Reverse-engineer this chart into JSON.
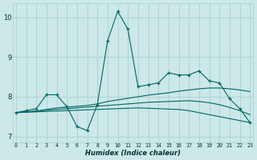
{
  "xlabel": "Humidex (Indice chaleur)",
  "bg_color": "#cce8e8",
  "grid_color": "#aacfcf",
  "line_color": "#006666",
  "x_ticks": [
    0,
    1,
    2,
    3,
    4,
    5,
    6,
    7,
    8,
    9,
    10,
    11,
    12,
    13,
    14,
    15,
    16,
    17,
    18,
    19,
    20,
    21,
    22,
    23
  ],
  "ylim": [
    6.85,
    10.35
  ],
  "xlim": [
    -0.3,
    23.3
  ],
  "series1_x": [
    0,
    1,
    2,
    3,
    4,
    5,
    6,
    7,
    8,
    9,
    10,
    11,
    12,
    13,
    14,
    15,
    16,
    17,
    18,
    19,
    20,
    21,
    22,
    23
  ],
  "series1_y": [
    7.6,
    7.65,
    7.7,
    8.05,
    8.05,
    7.75,
    7.25,
    7.15,
    7.8,
    9.4,
    10.15,
    9.7,
    8.25,
    8.3,
    8.35,
    8.6,
    8.55,
    8.55,
    8.65,
    8.4,
    8.35,
    7.95,
    7.7,
    7.35
  ],
  "series2_x": [
    0,
    1,
    2,
    3,
    4,
    5,
    6,
    7,
    8,
    9,
    10,
    11,
    12,
    13,
    14,
    15,
    16,
    17,
    18,
    19,
    20,
    21,
    22,
    23
  ],
  "series2_y": [
    7.6,
    7.62,
    7.64,
    7.66,
    7.68,
    7.7,
    7.72,
    7.74,
    7.76,
    7.78,
    7.8,
    7.82,
    7.84,
    7.86,
    7.87,
    7.88,
    7.89,
    7.9,
    7.88,
    7.85,
    7.8,
    7.73,
    7.65,
    7.55
  ],
  "series3_x": [
    0,
    1,
    2,
    3,
    4,
    5,
    6,
    7,
    8,
    9,
    10,
    11,
    12,
    13,
    14,
    15,
    16,
    17,
    18,
    19,
    20,
    21,
    22,
    23
  ],
  "series3_y": [
    7.6,
    7.62,
    7.64,
    7.68,
    7.72,
    7.74,
    7.76,
    7.78,
    7.82,
    7.88,
    7.92,
    7.96,
    8.0,
    8.04,
    8.07,
    8.1,
    8.14,
    8.17,
    8.2,
    8.22,
    8.22,
    8.2,
    8.17,
    8.13
  ],
  "series4_x": [
    0,
    1,
    2,
    3,
    4,
    5,
    6,
    7,
    8,
    9,
    10,
    11,
    12,
    13,
    14,
    15,
    16,
    17,
    18,
    19,
    20,
    21,
    22,
    23
  ],
  "series4_y": [
    7.6,
    7.61,
    7.62,
    7.63,
    7.64,
    7.65,
    7.66,
    7.67,
    7.68,
    7.69,
    7.7,
    7.71,
    7.72,
    7.71,
    7.7,
    7.69,
    7.68,
    7.65,
    7.6,
    7.55,
    7.5,
    7.45,
    7.4,
    7.35
  ]
}
